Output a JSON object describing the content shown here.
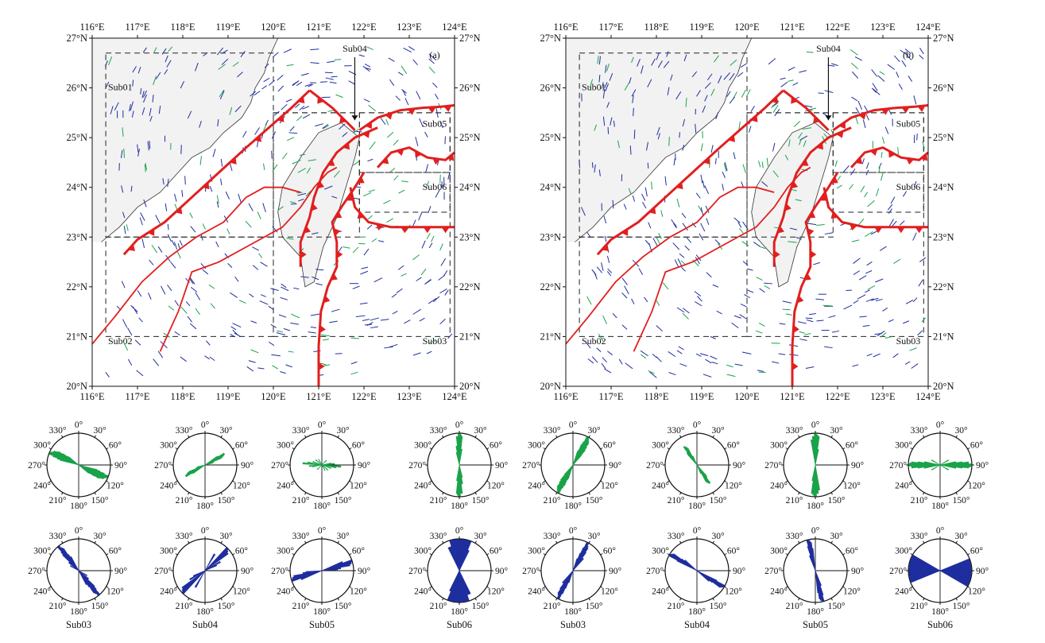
{
  "colors": {
    "stress": "#1f2e9e",
    "fracture": "#1aa34a",
    "fault": "#e11f1f",
    "land": "#f2f2f2"
  },
  "maps": [
    {
      "id": "a",
      "panel_label": "(a)"
    },
    {
      "id": "b",
      "panel_label": "(b)"
    }
  ],
  "axis": {
    "lon_ticks": [
      "116°E",
      "117°E",
      "118°E",
      "119°E",
      "120°E",
      "121°E",
      "122°E",
      "123°E",
      "124°E"
    ],
    "lat_ticks": [
      "27°N",
      "26°N",
      "25°N",
      "24°N",
      "23°N",
      "22°N",
      "21°N",
      "20°N"
    ]
  },
  "subregions": [
    {
      "label": "Sub01",
      "lon": [
        116.3,
        120.0
      ],
      "lat": [
        23.0,
        26.7
      ]
    },
    {
      "label": "Sub02",
      "lon": [
        116.3,
        120.0
      ],
      "lat": [
        21.0,
        23.0
      ]
    },
    {
      "label": "Sub03",
      "lon": [
        120.0,
        123.9
      ],
      "lat": [
        21.0,
        25.5
      ]
    },
    {
      "label": "Sub04",
      "lon": [
        120.0,
        121.9
      ],
      "lat": [
        23.0,
        25.5
      ]
    },
    {
      "label": "Sub05",
      "lon": [
        121.9,
        123.9
      ],
      "lat": [
        24.3,
        25.5
      ]
    },
    {
      "label": "Sub06",
      "lon": [
        121.9,
        123.9
      ],
      "lat": [
        23.5,
        24.3
      ]
    }
  ],
  "annotation": {
    "arrow_label": "Sub04"
  },
  "rose_labels": {
    "angles": [
      "0°",
      "30°",
      "60°",
      "90°",
      "120°",
      "150°",
      "180°",
      "210°",
      "240°",
      "270°",
      "300°",
      "330°"
    ]
  },
  "roses": {
    "a": {
      "green": [
        {
          "caption": "",
          "dirs": [
            112,
            114,
            116,
            118,
            120,
            122,
            110,
            108,
            106,
            124,
            126,
            128
          ],
          "len": [
            0.98,
            0.95,
            0.9,
            0.88,
            0.8,
            0.75,
            0.85,
            0.7,
            0.6,
            0.6,
            0.45,
            0.4
          ]
        },
        {
          "caption": "",
          "dirs": [
            60,
            62,
            64,
            66,
            58,
            56,
            70,
            75
          ],
          "len": [
            0.7,
            0.65,
            0.6,
            0.55,
            0.5,
            0.45,
            0.3,
            0.25
          ]
        },
        {
          "caption": "",
          "dirs": [
            95,
            100,
            85,
            80,
            110,
            130,
            150,
            45
          ],
          "len": [
            0.6,
            0.45,
            0.4,
            0.3,
            0.3,
            0.25,
            0.2,
            0.2
          ]
        },
        {
          "caption": "",
          "dirs": [
            0,
            2,
            4,
            176,
            178,
            172,
            8,
            168
          ],
          "len": [
            0.98,
            0.95,
            0.9,
            0.9,
            0.85,
            0.6,
            0.5,
            0.4
          ]
        }
      ],
      "blue": [
        {
          "caption": "Sub03",
          "dirs": [
            140,
            142,
            144,
            138,
            136,
            146,
            150,
            130,
            120
          ],
          "len": [
            0.98,
            0.9,
            0.85,
            0.8,
            0.7,
            0.6,
            0.5,
            0.4,
            0.3
          ]
        },
        {
          "caption": "Sub04",
          "dirs": [
            45,
            48,
            52,
            30,
            60,
            65
          ],
          "len": [
            0.98,
            0.95,
            0.9,
            0.6,
            0.55,
            0.4
          ]
        },
        {
          "caption": "Sub05",
          "dirs": [
            72,
            75,
            78,
            68,
            82,
            85
          ],
          "len": [
            0.98,
            0.95,
            0.9,
            0.7,
            0.6,
            0.5
          ]
        },
        {
          "caption": "Sub06",
          "dirs": [
            0,
            4,
            8,
            12,
            16,
            20,
            164,
            168,
            172,
            176,
            24,
            156,
            160
          ],
          "len": [
            0.98,
            0.98,
            0.98,
            0.98,
            0.98,
            0.98,
            0.98,
            0.98,
            0.98,
            0.98,
            0.7,
            0.8,
            0.8
          ]
        }
      ]
    },
    "b": {
      "green": [
        {
          "caption": "",
          "dirs": [
            28,
            30,
            32,
            34,
            26,
            24,
            36,
            38,
            22,
            20,
            40
          ],
          "len": [
            0.98,
            0.95,
            0.9,
            0.85,
            0.8,
            0.7,
            0.7,
            0.6,
            0.5,
            0.45,
            0.4
          ]
        },
        {
          "caption": "",
          "dirs": [
            145,
            148,
            150,
            142,
            140,
            155
          ],
          "len": [
            0.7,
            0.65,
            0.6,
            0.5,
            0.45,
            0.3
          ]
        },
        {
          "caption": "",
          "dirs": [
            0,
            3,
            6,
            176,
            172,
            10
          ],
          "len": [
            0.98,
            0.95,
            0.9,
            0.9,
            0.8,
            0.5
          ]
        },
        {
          "caption": "",
          "dirs": [
            90,
            92,
            94,
            86,
            88,
            84,
            96,
            100,
            80,
            60,
            120
          ],
          "len": [
            0.98,
            0.95,
            0.9,
            0.9,
            0.85,
            0.7,
            0.7,
            0.5,
            0.5,
            0.3,
            0.3
          ]
        }
      ],
      "blue": [
        {
          "caption": "Sub03",
          "dirs": [
            28,
            30,
            32,
            26,
            34,
            24,
            40,
            20
          ],
          "len": [
            0.98,
            0.9,
            0.85,
            0.8,
            0.7,
            0.6,
            0.5,
            0.4
          ]
        },
        {
          "caption": "Sub04",
          "dirs": [
            120,
            122,
            124,
            118,
            126,
            130
          ],
          "len": [
            0.98,
            0.95,
            0.9,
            0.7,
            0.6,
            0.5
          ]
        },
        {
          "caption": "Sub05",
          "dirs": [
            166,
            168,
            170,
            164,
            172,
            160
          ],
          "len": [
            0.98,
            0.95,
            0.9,
            0.8,
            0.7,
            0.5
          ]
        },
        {
          "caption": "Sub06",
          "dirs": [
            70,
            74,
            78,
            82,
            86,
            90,
            94,
            98,
            102,
            106,
            110,
            114,
            118
          ],
          "len": [
            0.98,
            0.98,
            0.98,
            0.98,
            0.98,
            0.98,
            0.98,
            0.98,
            0.98,
            0.98,
            0.98,
            0.98,
            0.98
          ]
        }
      ]
    }
  }
}
